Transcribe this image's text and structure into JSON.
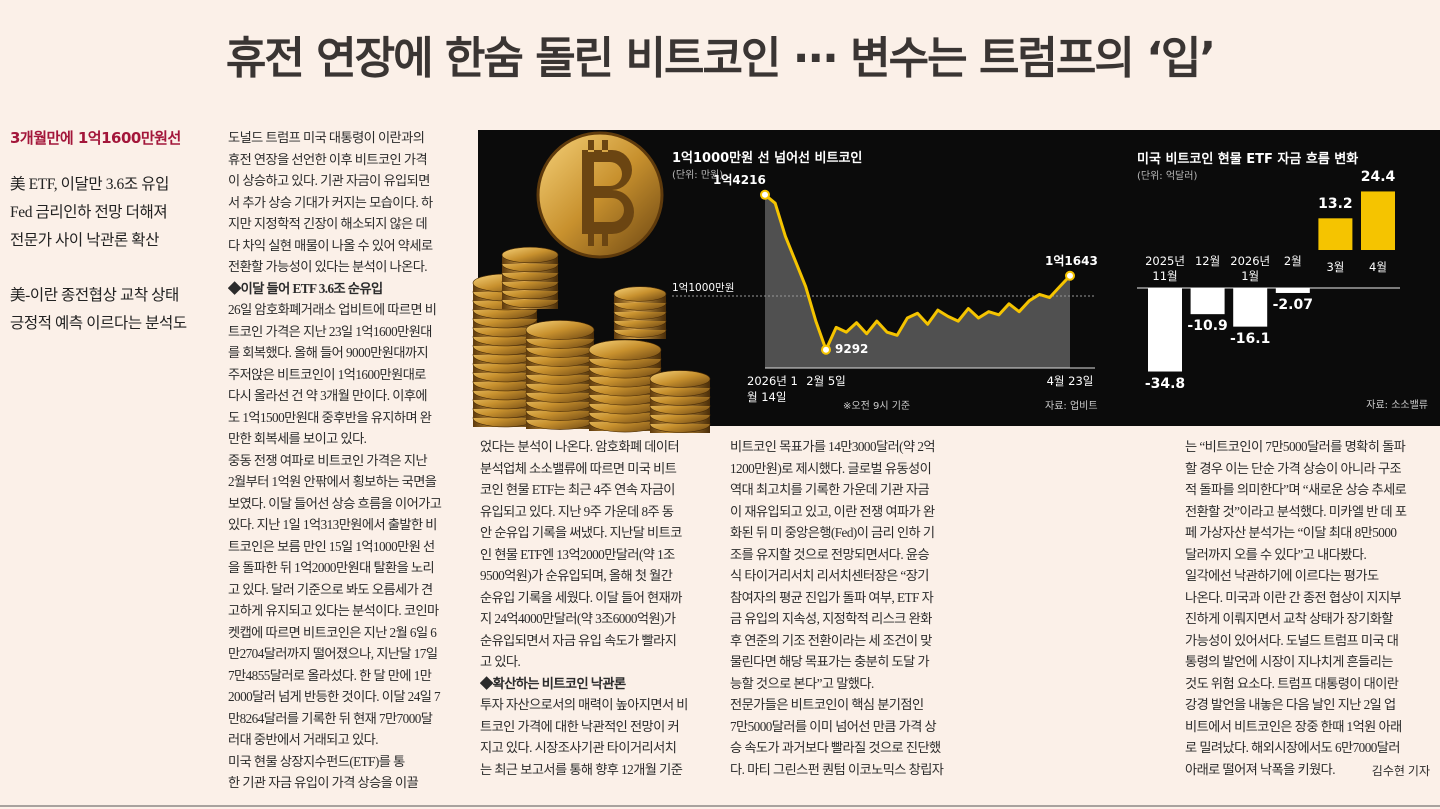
{
  "headline": "휴전 연장에 한숨 돌린 비트코인 ··· 변수는 트럼프의 ‘입’",
  "sidebar": {
    "kicker": "3개월만에 1억1600만원선",
    "groups": [
      [
        "美 ETF, 이달만 3.6조 유입",
        "Fed 금리인하 전망 더해져",
        "전문가 사이 낙관론 확산"
      ],
      [
        "美-이란 종전협상 교착 상태",
        "긍정적 예측 이르다는 분석도"
      ]
    ]
  },
  "columns": [
    [
      "도널드 트럼프 미국 대통령이 이란과의",
      "휴전 연장을 선언한 이후 비트코인 가격",
      "이 상승하고 있다. 기관 자금이 유입되면",
      "서 추가 상승 기대가 커지는 모습이다. 하",
      "지만 지정학적 긴장이 해소되지 않은 데",
      "다 차익 실현 매물이 나올 수 있어 약세로",
      "전환할 가능성이 있다는 분석이 나온다.",
      "◆이달 들어 ETF 3.6조 순유입",
      "26일 암호화폐거래소 업비트에 따르면 비",
      "트코인 가격은 지난 23일 1억1600만원대",
      "를 회복했다. 올해 들어 9000만원대까지",
      "주저앉은 비트코인이 1억1600만원대로",
      "다시 올라선 건 약 3개월 만이다. 이후에",
      "도 1억1500만원대 중후반을 유지하며 완",
      "만한 회복세를 보이고 있다.",
      "중동 전쟁 여파로 비트코인 가격은 지난",
      "2월부터 1억원 안팎에서 횡보하는 국면을",
      "보였다. 이달 들어선 상승 흐름을 이어가고",
      "있다. 지난 1일 1억313만원에서 출발한 비",
      "트코인은 보름 만인 15일 1억1000만원 선",
      "을 돌파한 뒤 1억2000만원대 탈환을 노리",
      "고 있다. 달러 기준으로 봐도 오름세가 견",
      "고하게 유지되고 있다는 분석이다. 코인마",
      "켓캡에 따르면 비트코인은 지난 2월 6일 6",
      "만2704달러까지 떨어졌으나, 지난달 17일",
      "7만4855달러로 올라섰다. 한 달 만에 1만",
      "2000달러 넘게 반등한 것이다. 이달 24일 7",
      "만8264달러를 기록한 뒤 현재 7만7000달",
      "러대 중반에서 거래되고 있다.",
      "미국 현물 상장지수펀드(ETF)를 통",
      "한 기관 자금 유입이 가격 상승을 이끌"
    ],
    [
      "었다는 분석이 나온다. 암호화폐 데이터",
      "분석업체 소소밸류에 따르면 미국 비트",
      "코인 현물 ETF는 최근 4주 연속 자금이",
      "유입되고 있다. 지난 9주 가운데 8주 동",
      "안 순유입 기록을 써냈다. 지난달 비트코",
      "인 현물 ETF엔 13억2000만달러(약 1조",
      "9500억원)가 순유입되며, 올해 첫 월간",
      "순유입 기록을 세웠다. 이달 들어 현재까",
      "지 24억4000만달러(약 3조6000억원)가",
      "순유입되면서 자금 유입 속도가 빨라지",
      "고 있다.",
      "◆확산하는 비트코인 낙관론",
      "투자 자산으로서의 매력이 높아지면서 비",
      "트코인 가격에 대한 낙관적인 전망이 커",
      "지고 있다. 시장조사기관 타이거리서치",
      "는 최근 보고서를 통해 향후 12개월 기준"
    ],
    [
      "비트코인 목표가를 14만3000달러(약 2억",
      "1200만원)로 제시했다. 글로벌 유동성이",
      "역대 최고치를 기록한 가운데 기관 자금",
      "이 재유입되고 있고, 이란 전쟁 여파가 완",
      "화된 뒤 미 중앙은행(Fed)이 금리 인하 기",
      "조를 유지할 것으로 전망되면서다. 윤승",
      "식 타이거리서치 리서치센터장은 “장기",
      "참여자의 평균 진입가 돌파 여부, ETF 자",
      "금 유입의 지속성, 지정학적 리스크 완화",
      "후 연준의 기조 전환이라는 세 조건이 맞",
      "물린다면 해당 목표가는 충분히 도달 가",
      "능할 것으로 본다”고 말했다.",
      "전문가들은 비트코인이 핵심 분기점인",
      "7만5000달러를 이미 넘어선 만큼 가격 상",
      "승 속도가 과거보다 빨라질 것으로 진단했",
      "다. 마티 그린스펀 퀀텀 이코노믹스 창립자"
    ],
    [
      "는 “비트코인이 7만5000달러를 명확히 돌파",
      "할 경우 이는 단순 가격 상승이 아니라 구조",
      "적 돌파를 의미한다”며 “새로운 상승 추세로",
      "전환할 것”이라고 분석했다. 미카엘 반 데 포",
      "페 가상자산 분석가는 “이달 최대 8만5000",
      "달러까지 오를 수 있다”고 내다봤다.",
      "일각에선 낙관하기에 이르다는 평가도",
      "나온다. 미국과 이란 간 종전 협상이 지지부",
      "진하게 이뤄지면서 교착 상태가 장기화할",
      "가능성이 있어서다. 도널드 트럼프 미국 대",
      "통령의 발언에 시장이 지나치게 흔들리는",
      "것도 위험 요소다. 트럼프 대통령이 대이란",
      "강경 발언을 내놓은 다음 날인 지난 2일 업",
      "비트에서 비트코인은 장중 한때 1억원 아래",
      "로 밀려났다. 해외시장에서도 6만7000달러",
      "아래로 떨어져 낙폭을 키웠다."
    ]
  ],
  "byline": "김수현 기자",
  "chart_data": [
    {
      "type": "line",
      "title": "1억1000만원 선 넘어선 비트코인",
      "unit": "(단위: 만원)",
      "categories": [
        "2026년 1월 14일",
        null,
        null,
        null,
        null,
        null,
        "2월 5일",
        null,
        null,
        null,
        null,
        null,
        null,
        null,
        null,
        null,
        null,
        null,
        null,
        null,
        null,
        null,
        null,
        null,
        null,
        null,
        null,
        null,
        null,
        null,
        "4월 23일"
      ],
      "values": [
        14216,
        13950,
        12900,
        12100,
        11300,
        10200,
        9292,
        10000,
        9850,
        10150,
        9800,
        10200,
        9850,
        9750,
        10300,
        10450,
        10100,
        10550,
        10350,
        10200,
        10600,
        10300,
        10500,
        10400,
        10750,
        10500,
        10850,
        11050,
        10950,
        11300,
        11643
      ],
      "value_labels": [
        "1억4216",
        null,
        null,
        null,
        null,
        null,
        "9292",
        null,
        null,
        null,
        null,
        null,
        null,
        null,
        null,
        null,
        null,
        null,
        null,
        null,
        null,
        null,
        null,
        null,
        null,
        null,
        null,
        null,
        null,
        null,
        "1억1643"
      ],
      "reference_line": {
        "value": 11000,
        "label": "1억1000만원"
      },
      "color": "#f5c400",
      "ylim": [
        8710,
        15640
      ],
      "note": "※오전 9시 기준",
      "source": "자료: 업비트"
    },
    {
      "type": "bar",
      "title": "미국 비트코인 현물 ETF 자금 흐름 변화",
      "unit": "(단위: 억달러)",
      "categories": [
        "2025년 11월",
        "12월",
        "2026년 1월",
        "2월",
        "3월",
        "4월"
      ],
      "values": [
        -34.8,
        -10.9,
        -16.1,
        -2.07,
        13.2,
        24.4
      ],
      "positive_color": "#f5c400",
      "negative_color": "#ffffff",
      "ylim": [
        -35,
        25
      ],
      "source": "자료: 소소밸류"
    }
  ]
}
